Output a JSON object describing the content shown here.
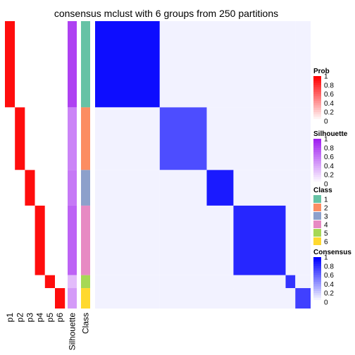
{
  "chart_data": {
    "type": "heatmap",
    "title": "consensus mclust with 6 groups from 250 partitions",
    "columns": [
      "p1",
      "p2",
      "p3",
      "p4",
      "p5",
      "p6",
      "Silhouette",
      "Class"
    ],
    "groups": [
      1,
      2,
      3,
      4,
      5,
      6
    ],
    "class_colors": {
      "1": "#66C2A5",
      "2": "#FC8D62",
      "3": "#8DA0CB",
      "4": "#E78AC3",
      "5": "#A6D854",
      "6": "#FFD92F"
    },
    "legends": [
      {
        "title": "Prob",
        "ticks": [
          "1",
          "0.8",
          "0.6",
          "0.4",
          "0.2",
          "0"
        ],
        "colors": [
          "#FF0000",
          "#FFFFFF"
        ]
      },
      {
        "title": "Silhouette",
        "ticks": [
          "1",
          "0.8",
          "0.6",
          "0.4",
          "0.2",
          "0"
        ],
        "colors": [
          "#A020F0",
          "#FFFFFF"
        ]
      },
      {
        "title": "Class",
        "ticks": [
          "1",
          "2",
          "3",
          "4",
          "5",
          "6"
        ],
        "colors": [
          "#66C2A5",
          "#FC8D62",
          "#8DA0CB",
          "#E78AC3",
          "#A6D854",
          "#FFD92F"
        ]
      },
      {
        "title": "Consensus",
        "ticks": [
          "1",
          "0.8",
          "0.6",
          "0.4",
          "0.2",
          "0"
        ],
        "colors": [
          "#0000FF",
          "#FFFFFF"
        ]
      }
    ],
    "sample_blocks": [
      {
        "class": 1,
        "fraction": 0.3
      },
      {
        "class": 2,
        "fraction": 0.218
      },
      {
        "class": 3,
        "fraction": 0.124
      },
      {
        "class": 4,
        "fraction": 0.242
      },
      {
        "class": 5,
        "fraction": 0.045
      },
      {
        "class": 6,
        "fraction": 0.071
      }
    ],
    "silhouette_by_class": [
      0.85,
      0.55,
      0.6,
      0.7,
      0.3,
      0.45
    ],
    "consensus_within_class": [
      0.95,
      0.7,
      0.9,
      0.85,
      0.8,
      0.75
    ],
    "consensus_between_class": 0.05,
    "colors": {
      "prob": "#FF0000",
      "silhouette": "#A020F0",
      "consensus": "#0000FF"
    }
  }
}
